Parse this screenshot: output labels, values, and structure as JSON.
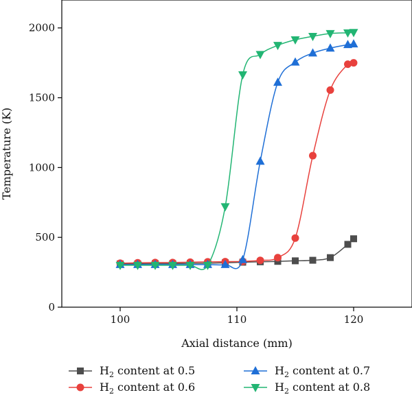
{
  "chart_data": {
    "type": "line",
    "xlabel": "Axial distance (mm)",
    "ylabel": "Temperature (K)",
    "xlim": [
      95,
      125
    ],
    "ylim": [
      0,
      2200
    ],
    "x_ticks": [
      100,
      110,
      120
    ],
    "y_ticks": [
      0,
      500,
      1000,
      1500,
      2000
    ],
    "grid": false,
    "legend_position": "bottom",
    "series": [
      {
        "name": "H2 content at 0.5",
        "legend_prefix": "H",
        "legend_sub": "2",
        "legend_suffix": " content at 0.5",
        "color": "#4d4d4d",
        "marker": "square",
        "x": [
          100,
          101.5,
          103,
          104.5,
          106,
          107.5,
          109,
          110.5,
          112,
          113.5,
          115,
          116.5,
          118,
          119.5,
          120
        ],
        "y": [
          310,
          310,
          312,
          312,
          314,
          315,
          318,
          322,
          325,
          328,
          332,
          336,
          355,
          450,
          490
        ]
      },
      {
        "name": "H2 content at 0.6",
        "legend_prefix": "H",
        "legend_sub": "2",
        "legend_suffix": " content at 0.6",
        "color": "#e8413d",
        "marker": "circle",
        "x": [
          100,
          101.5,
          103,
          104.5,
          106,
          107.5,
          109,
          110.5,
          112,
          113.5,
          115,
          116.5,
          118,
          119.5,
          120
        ],
        "y": [
          315,
          318,
          320,
          320,
          322,
          325,
          326,
          328,
          335,
          355,
          495,
          1085,
          1555,
          1740,
          1750
        ]
      },
      {
        "name": "H2 content at 0.7",
        "legend_prefix": "H",
        "legend_sub": "2",
        "legend_suffix": " content at 0.7",
        "color": "#1f6fd6",
        "marker": "triangle-up",
        "x": [
          100,
          101.5,
          103,
          104.5,
          106,
          107.5,
          109,
          110.5,
          112,
          113.5,
          115,
          116.5,
          118,
          119.5,
          120
        ],
        "y": [
          305,
          305,
          305,
          305,
          305,
          305,
          305,
          340,
          1045,
          1610,
          1755,
          1820,
          1855,
          1880,
          1885
        ]
      },
      {
        "name": "H2 content at 0.8",
        "legend_prefix": "H",
        "legend_sub": "2",
        "legend_suffix": " content at 0.8",
        "color": "#22b573",
        "marker": "triangle-down",
        "x": [
          100,
          101.5,
          103,
          104.5,
          106,
          107.5,
          109,
          110.5,
          112,
          113.5,
          115,
          116.5,
          118,
          119.5,
          120
        ],
        "y": [
          300,
          300,
          300,
          300,
          300,
          300,
          720,
          1665,
          1810,
          1875,
          1915,
          1940,
          1960,
          1965,
          1968
        ]
      }
    ]
  }
}
